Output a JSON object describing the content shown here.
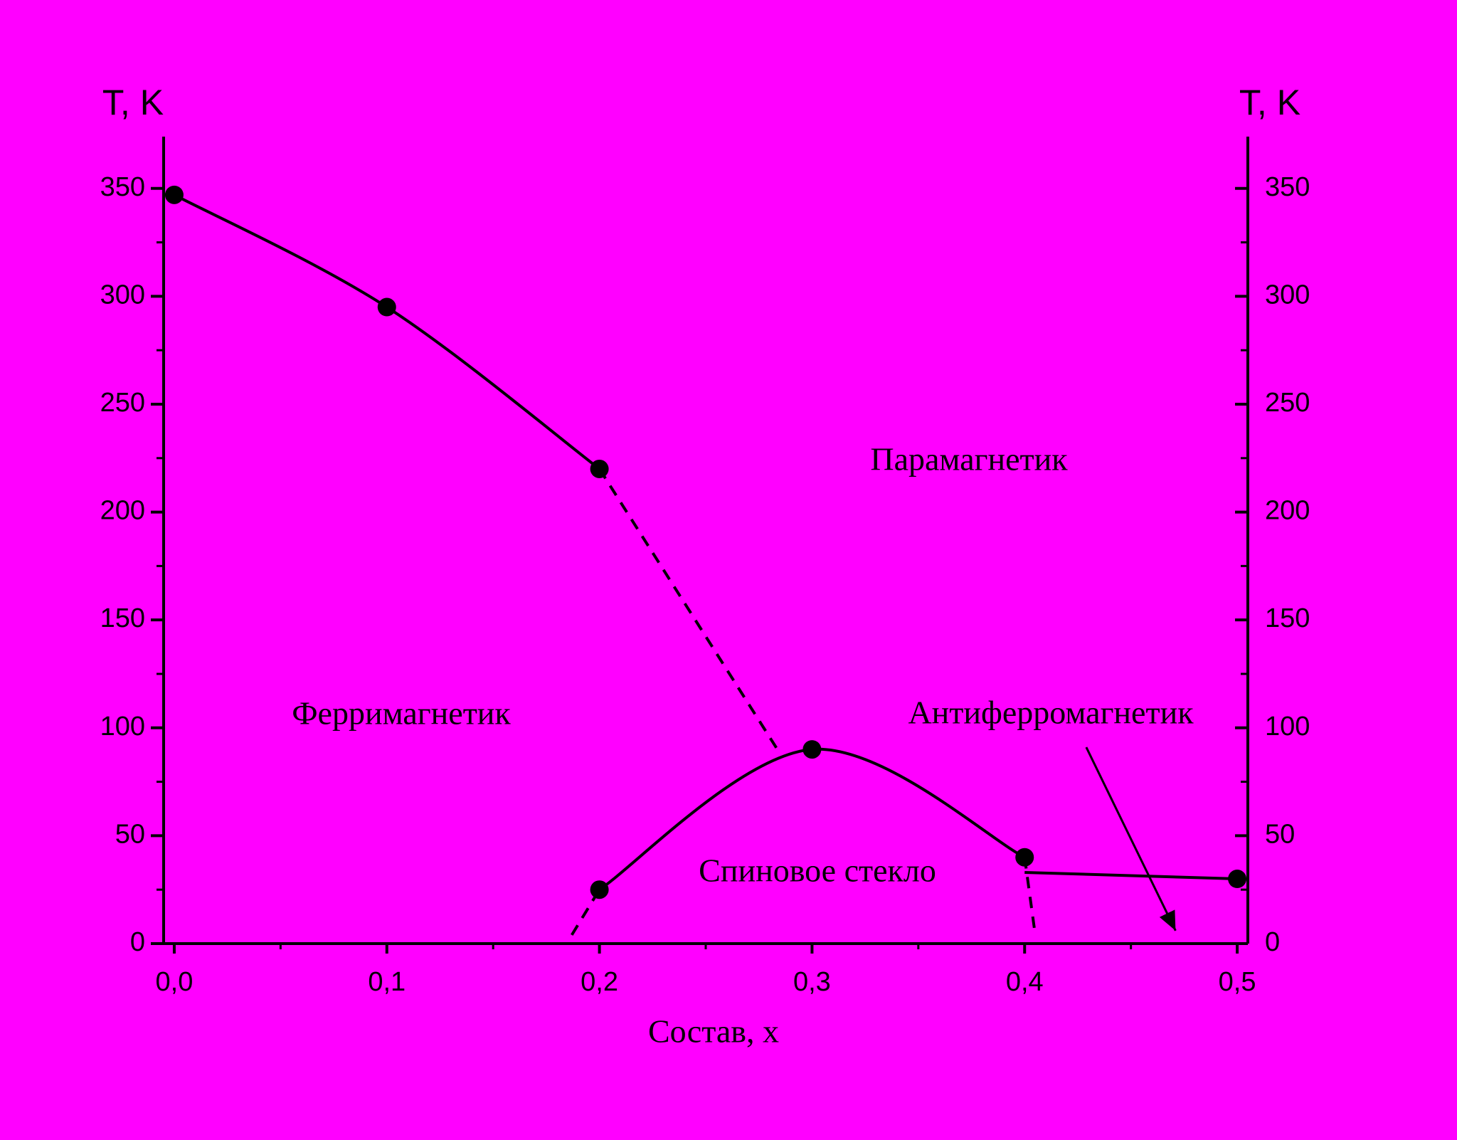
{
  "chart_data": {
    "type": "line",
    "x_label": "Состав, x",
    "y_label": "T, K",
    "y2_label": "T, K",
    "xlim": [
      -0.005,
      0.505
    ],
    "ylim": [
      0,
      374
    ],
    "y2lim": [
      0,
      374
    ],
    "xticks": [
      {
        "value": 0,
        "label": "0,0"
      },
      {
        "value": 0.1,
        "label": "0,1"
      },
      {
        "value": 0.2,
        "label": "0,2"
      },
      {
        "value": 0.3,
        "label": "0,3"
      },
      {
        "value": 0.4,
        "label": "0,4"
      },
      {
        "value": 0.5,
        "label": "0,5"
      }
    ],
    "yticks": [
      0,
      50,
      100,
      150,
      200,
      250,
      300,
      350
    ],
    "y2ticks": [
      0,
      50,
      100,
      150,
      200,
      250,
      300,
      350
    ],
    "color": "#000000",
    "points": {
      "x": [
        0,
        0.1,
        0.2,
        0.2,
        0.3,
        0.4,
        0.5
      ],
      "values": [
        347,
        295,
        220,
        25,
        90,
        40,
        30
      ]
    },
    "series": [
      {
        "x": [
          0,
          0.1,
          0.2
        ],
        "values": [
          347,
          295,
          220
        ],
        "dashed": false
      },
      {
        "x": [
          0.2,
          0.285
        ],
        "values": [
          220,
          88
        ],
        "dashed": true
      },
      {
        "x": [
          0.2,
          0.3,
          0.4
        ],
        "values": [
          25,
          90,
          40
        ],
        "dashed": false
      },
      {
        "x": [
          0.187,
          0.2
        ],
        "values": [
          4,
          25
        ],
        "dashed": true
      },
      {
        "x": [
          0.4,
          0.405
        ],
        "values": [
          40,
          4
        ],
        "dashed": true
      },
      {
        "x": [
          0.4,
          0.5
        ],
        "values": [
          33,
          30
        ],
        "dashed": false
      }
    ],
    "annotations": [
      "Парамагнетик",
      "Ферримагнетик",
      "Антиферромагнетик",
      "Спиновое стекло"
    ],
    "arrow": {
      "x": [
        0.429,
        0.471
      ],
      "values": [
        91,
        6
      ]
    }
  }
}
